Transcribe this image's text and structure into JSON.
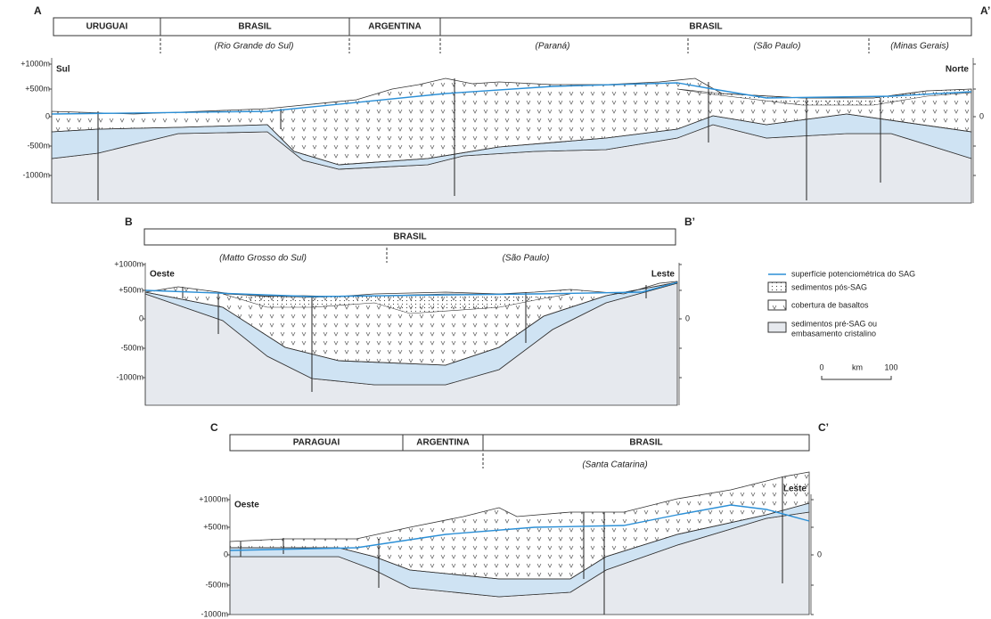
{
  "sections": [
    {
      "left_label": "A",
      "right_label": "A’",
      "countries": [
        "URUGUAI",
        "BRASIL",
        "ARGENTINA",
        "BRASIL"
      ],
      "states": [
        "(Rio Grande do Sul)",
        "(Paraná)",
        "(São Paulo)",
        "(Minas Gerais)"
      ],
      "axis_labels": [
        "+1000m",
        "+500m",
        "0",
        "-500m",
        "-1000m"
      ],
      "right_axis_label": "0",
      "left_direction": "Sul",
      "right_direction": "Norte"
    },
    {
      "left_label": "B",
      "right_label": "B’",
      "countries": [
        "BRASIL"
      ],
      "states": [
        "(Matto Grosso do Sul)",
        "(São Paulo)"
      ],
      "axis_labels": [
        "+1000m",
        "+500m",
        "0",
        "-500m",
        "-1000m"
      ],
      "right_axis_label": "0",
      "left_direction": "Oeste",
      "right_direction": "Leste"
    },
    {
      "left_label": "C",
      "right_label": "C’",
      "countries": [
        "PARAGUAI",
        "ARGENTINA",
        "BRASIL"
      ],
      "states": [
        "(Santa Catarina)"
      ],
      "axis_labels": [
        "+1000m",
        "+500m",
        "0",
        "-500m",
        "-1000m"
      ],
      "right_axis_label": "0",
      "left_direction": "Oeste",
      "right_direction": "Leste"
    }
  ],
  "legend": {
    "items": [
      "superfície potenciométrica do SAG",
      "sedimentos pós-SAG",
      "cobertura de basaltos"
    ],
    "last_item": [
      "sedimentos pré-SAG ou",
      "embasamento cristalino"
    ],
    "scale": [
      "0",
      "km",
      "100"
    ]
  }
}
